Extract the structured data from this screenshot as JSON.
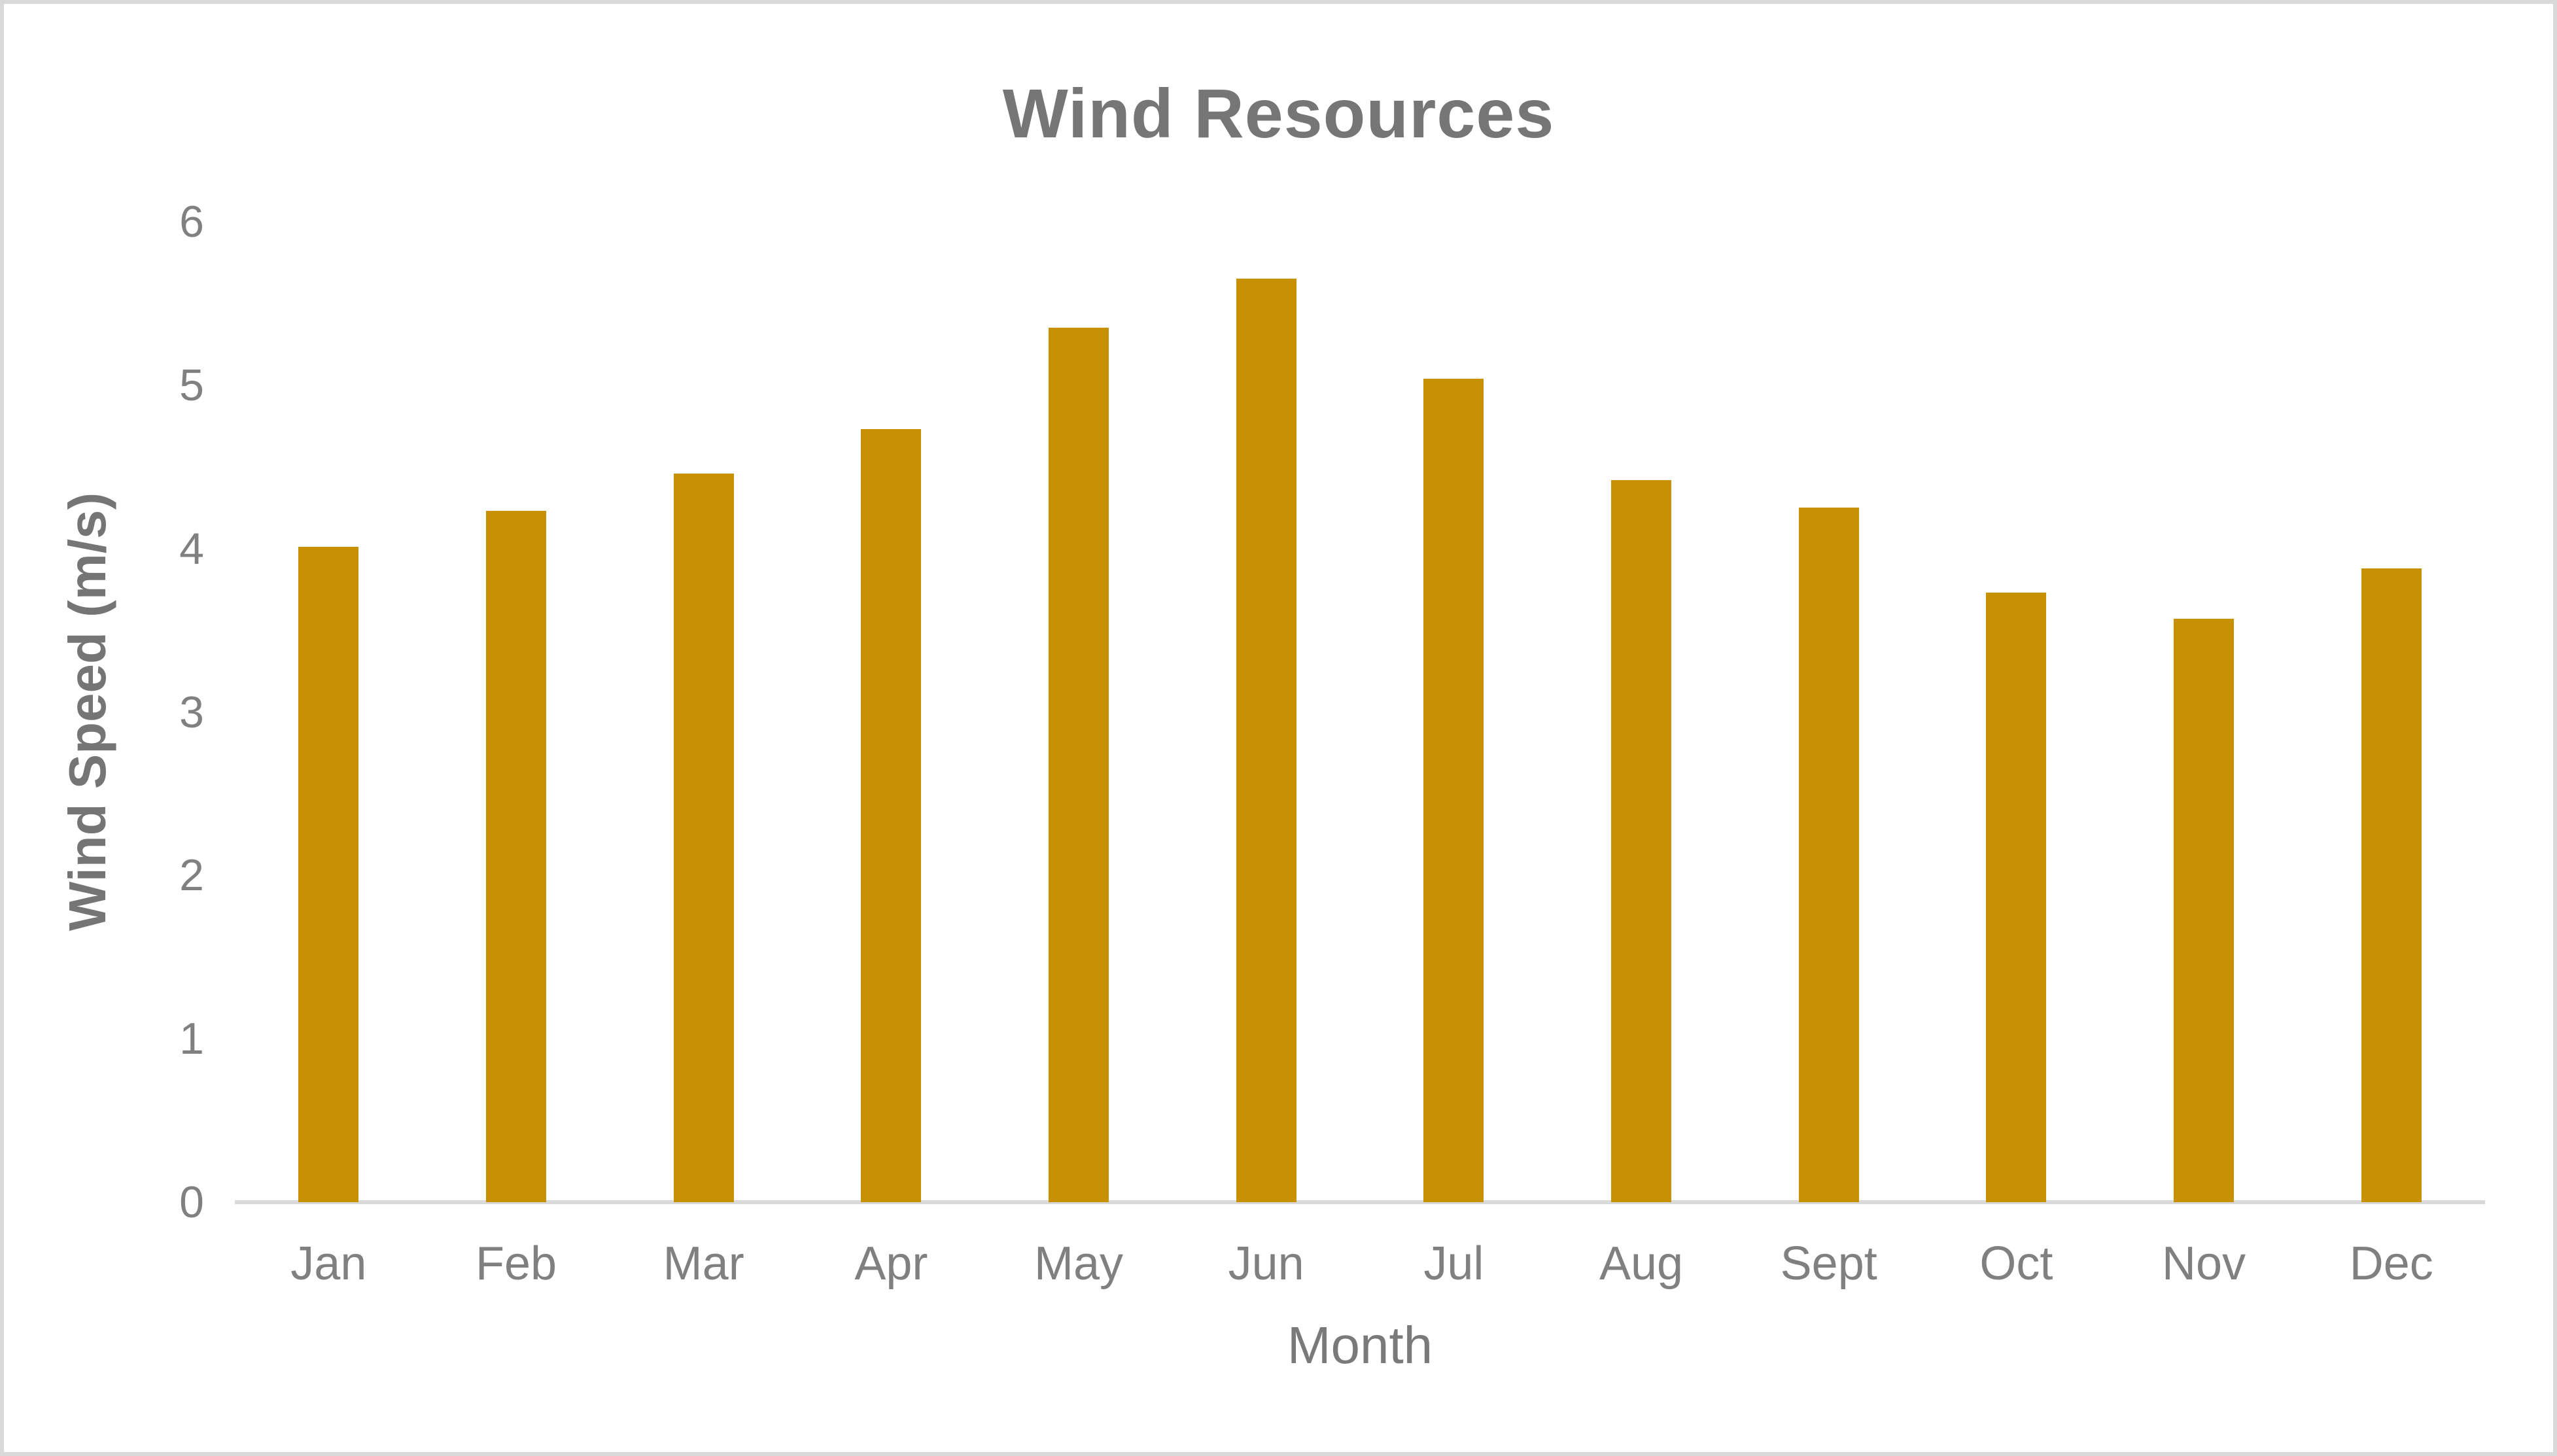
{
  "chart": {
    "title": "Wind Resources",
    "y_axis_title": "Wind Speed (m/s)",
    "x_axis_title": "Month"
  },
  "chart_data": {
    "type": "bar",
    "title": "Wind Resources",
    "xlabel": "Month",
    "ylabel": "Wind Speed (m/s)",
    "categories": [
      "Jan",
      "Feb",
      "Mar",
      "Apr",
      "May",
      "Jun",
      "Jul",
      "Aug",
      "Sept",
      "Oct",
      "Nov",
      "Dec"
    ],
    "values": [
      4.01,
      4.23,
      4.46,
      4.73,
      5.35,
      5.65,
      5.04,
      4.42,
      4.25,
      3.73,
      3.57,
      3.88
    ],
    "yticks": [
      0,
      1,
      2,
      3,
      4,
      5,
      6
    ],
    "ylim": [
      0,
      6
    ],
    "grid": false,
    "legend_position": "none",
    "colors": {
      "bar": "#C89104",
      "axis_line": "#D9D9D9",
      "frame_border": "#D9D9D9",
      "tick_text": "#808080",
      "title_text": "#767676",
      "background": "#FFFFFF"
    }
  }
}
